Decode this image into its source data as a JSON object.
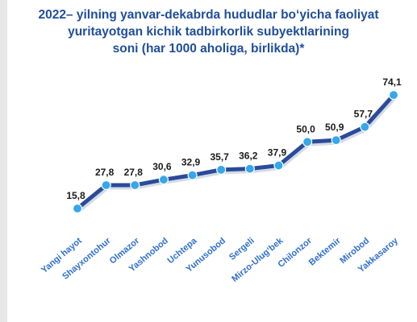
{
  "title_lines": [
    "2022– yilning yanvar-dekabrda hududlar bo‘yicha faoliyat",
    "yuritayotgan kichik tadbirkorlik subyektlarining",
    "soni (har 1000 aholiga, birlikda)*"
  ],
  "colors": {
    "line": "#2a4b9b",
    "marker": "#35a7ea",
    "title": "#1f4e9c",
    "category_label": "#2f6fd0"
  },
  "chart_data": {
    "type": "line",
    "title": "2022– yilning yanvar-dekabrda hududlar bo‘yicha faoliyat yuritayotgan kichik tadbirkorlik subyektlarining soni (har 1000 aholiga, birlikda)*",
    "categories": [
      "Yangi hayot",
      "Shayxontohur",
      "Olmazor",
      "Yashnobod",
      "Uchtepa",
      "Yunusobod",
      "Sergeli",
      "Mirzo-Ulug‘bek",
      "Chilonzor",
      "Bektemir",
      "Mirobod",
      "Yakkasaroy"
    ],
    "values": [
      15.8,
      27.8,
      27.8,
      30.6,
      32.9,
      35.7,
      36.2,
      37.9,
      50.0,
      50.9,
      57.7,
      74.1
    ],
    "value_labels": [
      "15,8",
      "27,8",
      "27,8",
      "30,6",
      "32,9",
      "35,7",
      "36,2",
      "37,9",
      "50,0",
      "50,9",
      "57,7",
      "74,1"
    ],
    "xlabel": "",
    "ylabel": "",
    "ylim": [
      0,
      80
    ],
    "grid": false,
    "legend": "none"
  }
}
